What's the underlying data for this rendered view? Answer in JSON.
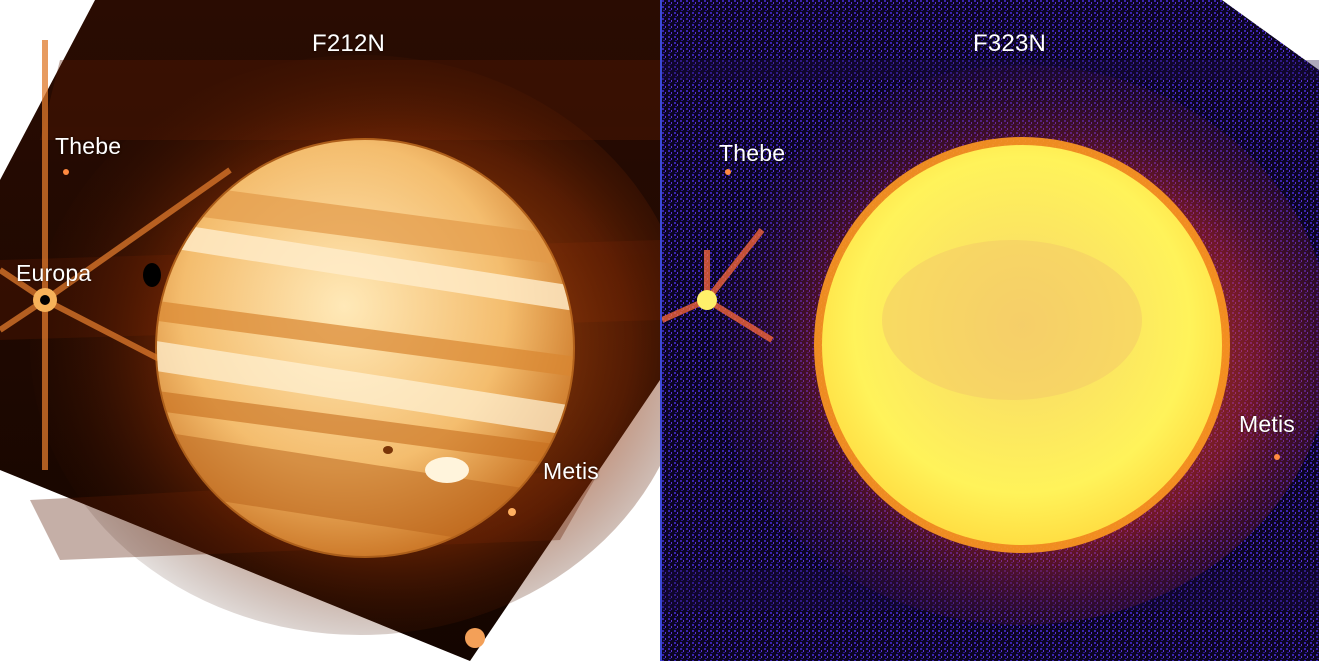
{
  "left_panel": {
    "filter": "F212N",
    "moons": {
      "thebe": "Thebe",
      "europa": "Europa",
      "metis": "Metis"
    },
    "colors": {
      "background": "#1a0700",
      "planet_core": "#ffe2a6",
      "planet_edge": "#c9741f",
      "glow": "#d8660e"
    }
  },
  "right_panel": {
    "filter": "F323N",
    "moons": {
      "thebe": "Thebe",
      "metis": "Metis"
    },
    "colors": {
      "background": "#0a0418",
      "noise": "#3b20a8",
      "planet_core": "#fffb6a",
      "planet_edge": "#ff9a20",
      "glow": "#ff5a12"
    }
  }
}
